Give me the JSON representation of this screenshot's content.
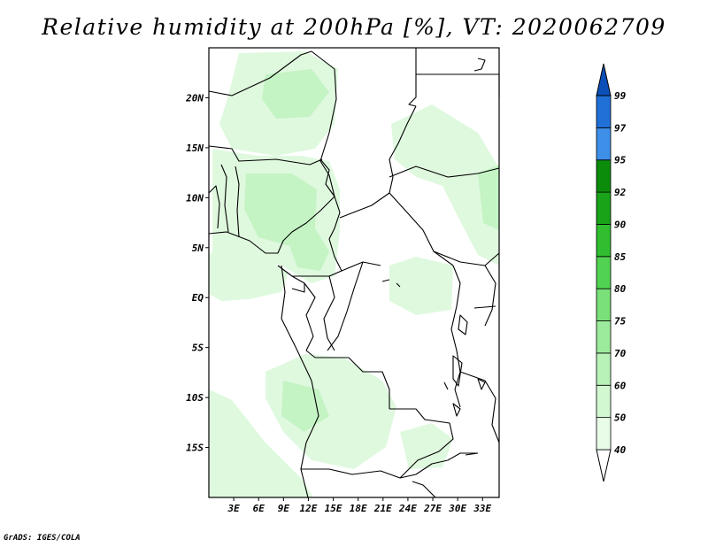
{
  "title": "Relative humidity at 200hPa [%], VT: 2020062709",
  "credit": "GrADS: IGES/COLA",
  "map": {
    "lon_range": [
      0,
      35
    ],
    "lat_range": [
      -20,
      25
    ],
    "lat_labels": [
      "20N",
      "15N",
      "10N",
      "5N",
      "EQ",
      "5S",
      "10S",
      "15S"
    ],
    "lat_values": [
      20,
      15,
      10,
      5,
      0,
      -5,
      -10,
      -15
    ],
    "lon_labels": [
      "3E",
      "6E",
      "9E",
      "12E",
      "15E",
      "18E",
      "21E",
      "24E",
      "27E",
      "30E",
      "33E"
    ],
    "lon_values": [
      3,
      6,
      9,
      12,
      15,
      18,
      21,
      24,
      27,
      30,
      33
    ]
  },
  "colorbar": {
    "levels": [
      "40",
      "50",
      "60",
      "70",
      "75",
      "80",
      "85",
      "90",
      "92",
      "95",
      "97",
      "99"
    ],
    "colors": [
      "#e8fce8",
      "#d2f8d2",
      "#b8f2b8",
      "#9ceb9c",
      "#7ae07a",
      "#52d252",
      "#30be30",
      "#18a318",
      "#0b8c0b",
      "#3d8fe8",
      "#2070d8",
      "#0b4fb8"
    ]
  },
  "colors": {
    "light_green": "#e2fae2",
    "mid_green": "#c6f4c6",
    "boundary": "#000000"
  }
}
